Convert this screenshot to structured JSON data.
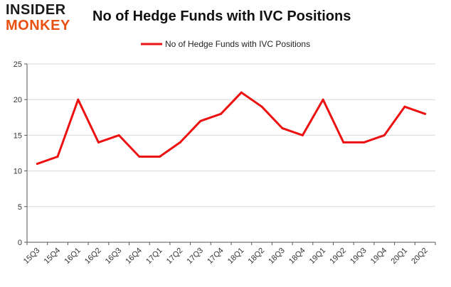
{
  "logo": {
    "line1": "INSIDER",
    "line2": "MONKEY"
  },
  "colors": {
    "series": "#ee1111",
    "grid": "#d9d9d9",
    "axis": "#555555",
    "logo_accent": "#e8500f"
  },
  "chart_data": {
    "type": "line",
    "title": "No of Hedge Funds with IVC Positions",
    "xlabel": "",
    "ylabel": "",
    "legend": "top-center",
    "grid": true,
    "ylim": [
      0,
      25
    ],
    "yticks": [
      0,
      5,
      10,
      15,
      20,
      25
    ],
    "categories": [
      "15Q3",
      "15Q4",
      "16Q1",
      "16Q2",
      "16Q3",
      "16Q4",
      "17Q1",
      "17Q2",
      "17Q3",
      "17Q4",
      "18Q1",
      "18Q2",
      "18Q3",
      "18Q4",
      "19Q1",
      "19Q2",
      "19Q3",
      "19Q4",
      "20Q1",
      "20Q2"
    ],
    "series": [
      {
        "name": "No of Hedge Funds with IVC Positions",
        "values": [
          11,
          12,
          20,
          14,
          15,
          12,
          12,
          14,
          17,
          18,
          21,
          19,
          16,
          15,
          20,
          14,
          14,
          15,
          19,
          18
        ]
      }
    ]
  }
}
